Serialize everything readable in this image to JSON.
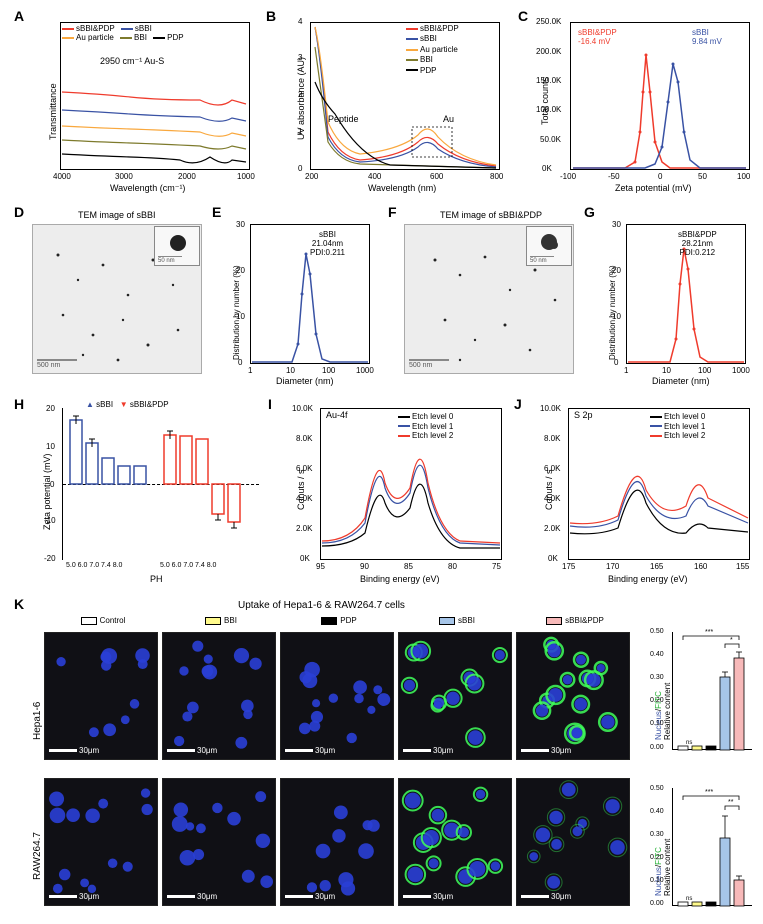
{
  "colors": {
    "red": "#ef3b2c",
    "blue": "#3952a4",
    "orange": "#f9a83e",
    "olive": "#7d7a2c",
    "black": "#000000",
    "pink": "#f7b9b9",
    "lightblue": "#a6c5e8",
    "gray_tem": "#e8e8e8",
    "cell_bg": "#0a0820",
    "cell_green": "#4dff5c"
  },
  "panelA": {
    "label": "A",
    "ylabel": "Transmittance",
    "xlabel": "Wavelength (cm⁻¹)",
    "xlim": [
      4000,
      1000
    ],
    "xticks": [
      4000,
      3000,
      2000,
      1000
    ],
    "annotation": "2950 cm⁻¹ Au-S",
    "legend": [
      {
        "label": "sBBI&PDP",
        "color": "#ef3b2c"
      },
      {
        "label": "sBBI",
        "color": "#3952a4"
      },
      {
        "label": "Au particle",
        "color": "#f9a83e"
      },
      {
        "label": "BBI",
        "color": "#7d7a2c"
      },
      {
        "label": "PDP",
        "color": "#000000"
      }
    ]
  },
  "panelB": {
    "label": "B",
    "ylabel": "UV absorbance (AU)",
    "xlabel": "Wavelength (nm)",
    "xlim": [
      200,
      800
    ],
    "ylim": [
      0,
      4
    ],
    "xticks": [
      200,
      400,
      600,
      800
    ],
    "yticks": [
      0,
      1,
      2,
      3,
      4
    ],
    "ann_peptide": "Peptide",
    "ann_au": "Au",
    "legend": [
      {
        "label": "sBBI&PDP",
        "color": "#ef3b2c"
      },
      {
        "label": "sBBI",
        "color": "#3952a4"
      },
      {
        "label": "Au particle",
        "color": "#f9a83e"
      },
      {
        "label": "BBI",
        "color": "#7d7a2c"
      },
      {
        "label": "PDP",
        "color": "#000000"
      }
    ]
  },
  "panelC": {
    "label": "C",
    "ylabel": "Total counts",
    "xlabel": "Zeta potential (mV)",
    "xlim": [
      -100,
      100
    ],
    "ylim": [
      0,
      250000
    ],
    "xticks": [
      -100,
      -50,
      0,
      50,
      100
    ],
    "yticks": [
      "0K",
      "50.0K",
      "100.0K",
      "150.0K",
      "200.0K",
      "250.0K"
    ],
    "series": [
      {
        "label": "sBBI&PDP",
        "value": "-16.4 mV",
        "color": "#ef3b2c",
        "peak_x": -16.4,
        "peak_y": 200000
      },
      {
        "label": "sBBI",
        "value": "9.84 mV",
        "color": "#3952a4",
        "peak_x": 9.84,
        "peak_y": 180000
      }
    ]
  },
  "panelD": {
    "label": "D",
    "title": "TEM image of sBBI",
    "scale_main": "500 nm",
    "scale_inset": "50 nm"
  },
  "panelE": {
    "label": "E",
    "ylabel": "Distribution by number (%)",
    "xlabel": "Diameter (nm)",
    "xlim": [
      1,
      1000
    ],
    "ylim": [
      0,
      30
    ],
    "xticks": [
      1,
      10,
      100,
      1000
    ],
    "yticks": [
      0,
      10,
      20,
      30
    ],
    "series_label": "sBBI",
    "size": "21.04nm",
    "pdi": "PDI:0.211",
    "color": "#3952a4",
    "peak_x": 21,
    "peak_y": 24
  },
  "panelF": {
    "label": "F",
    "title": "TEM image of sBBI&PDP",
    "scale_main": "500 nm",
    "scale_inset": "50 nm"
  },
  "panelG": {
    "label": "G",
    "ylabel": "Distribution by number (%)",
    "xlabel": "Diameter (nm)",
    "xlim": [
      1,
      1000
    ],
    "ylim": [
      0,
      30
    ],
    "xticks": [
      1,
      10,
      100,
      1000
    ],
    "yticks": [
      0,
      10,
      20,
      30
    ],
    "series_label": "sBBI&PDP",
    "size": "28.21nm",
    "pdi": "PDI:0.212",
    "color": "#ef3b2c",
    "peak_x": 28,
    "peak_y": 25
  },
  "panelH": {
    "label": "H",
    "ylabel": "Zeta potential (mV)",
    "xlabel": "PH",
    "ylim": [
      -20,
      20
    ],
    "yticks": [
      -20,
      -10,
      0,
      10,
      20
    ],
    "categories": [
      "5.0",
      "6.0",
      "7.0",
      "7.4",
      "8.0"
    ],
    "series": [
      {
        "label": "sBBI",
        "color": "#3952a4",
        "values": [
          17,
          11,
          7,
          5,
          5
        ]
      },
      {
        "label": "sBBI&PDP",
        "color": "#ef3b2c",
        "values": [
          13,
          13,
          12,
          -8,
          -10
        ]
      }
    ]
  },
  "panelI": {
    "label": "I",
    "title": "Au-4f",
    "ylabel": "Conuts / s",
    "xlabel": "Binding energy (eV)",
    "xlim": [
      95,
      75
    ],
    "ylim": [
      0,
      10000
    ],
    "xticks": [
      95,
      90,
      85,
      80,
      75
    ],
    "yticks": [
      "0K",
      "2.0K",
      "4.0K",
      "6.0K",
      "8.0K",
      "10.0K"
    ],
    "legend": [
      {
        "label": "Etch level 0",
        "color": "#000000"
      },
      {
        "label": "Etch level 1",
        "color": "#3952a4"
      },
      {
        "label": "Etch level 2",
        "color": "#ef3b2c"
      }
    ]
  },
  "panelJ": {
    "label": "J",
    "title": "S 2p",
    "ylabel": "Conuts / s",
    "xlabel": "Binding energy (eV)",
    "xlim": [
      175,
      155
    ],
    "ylim": [
      0,
      10000
    ],
    "xticks": [
      175,
      170,
      165,
      160,
      155
    ],
    "yticks": [
      "0K",
      "2.0K",
      "4.0K",
      "6.0K",
      "8.0K",
      "10.0K"
    ],
    "legend": [
      {
        "label": "Etch level 0",
        "color": "#000000"
      },
      {
        "label": "Etch level 1",
        "color": "#3952a4"
      },
      {
        "label": "Etch level 2",
        "color": "#ef3b2c"
      }
    ]
  },
  "panelK": {
    "label": "K",
    "title": "Uptake of Hepa1-6 & RAW264.7 cells",
    "rows": [
      "Hepa1-6",
      "RAW264.7"
    ],
    "cols": [
      {
        "label": "Control",
        "color": "#ffffff"
      },
      {
        "label": "BBI",
        "color": "#fffa8c"
      },
      {
        "label": "PDP",
        "color": "#000000"
      },
      {
        "label": "sBBI",
        "color": "#a6c5e8"
      },
      {
        "label": "sBBI&PDP",
        "color": "#f7b9b9"
      }
    ],
    "scalebar": "30μm",
    "bar_ylabel": "Relative content",
    "bar_sublabel_nuc": "Nucleus",
    "bar_sublabel_fitc": "FITC",
    "bars_hepa": {
      "ylim": [
        0,
        0.5
      ],
      "yticks": [
        0.0,
        0.1,
        0.2,
        0.3,
        0.4,
        0.5
      ],
      "values": [
        0.015,
        0.015,
        0.015,
        0.31,
        0.39
      ],
      "colors": [
        "#ffffff",
        "#fffa8c",
        "#000000",
        "#a6c5e8",
        "#f7b9b9"
      ],
      "sig": [
        {
          "a": 3,
          "b": 4,
          "label": "*"
        },
        {
          "a": 0,
          "b": 4,
          "label": "***"
        }
      ],
      "ns_label": "ns"
    },
    "bars_raw": {
      "ylim": [
        0,
        0.5
      ],
      "yticks": [
        0.0,
        0.1,
        0.2,
        0.3,
        0.4,
        0.5
      ],
      "values": [
        0.015,
        0.015,
        0.015,
        0.29,
        0.11
      ],
      "colors": [
        "#ffffff",
        "#fffa8c",
        "#000000",
        "#a6c5e8",
        "#f7b9b9"
      ],
      "sig": [
        {
          "a": 3,
          "b": 4,
          "label": "**"
        },
        {
          "a": 0,
          "b": 4,
          "label": "***"
        }
      ],
      "ns_label": "ns"
    }
  }
}
